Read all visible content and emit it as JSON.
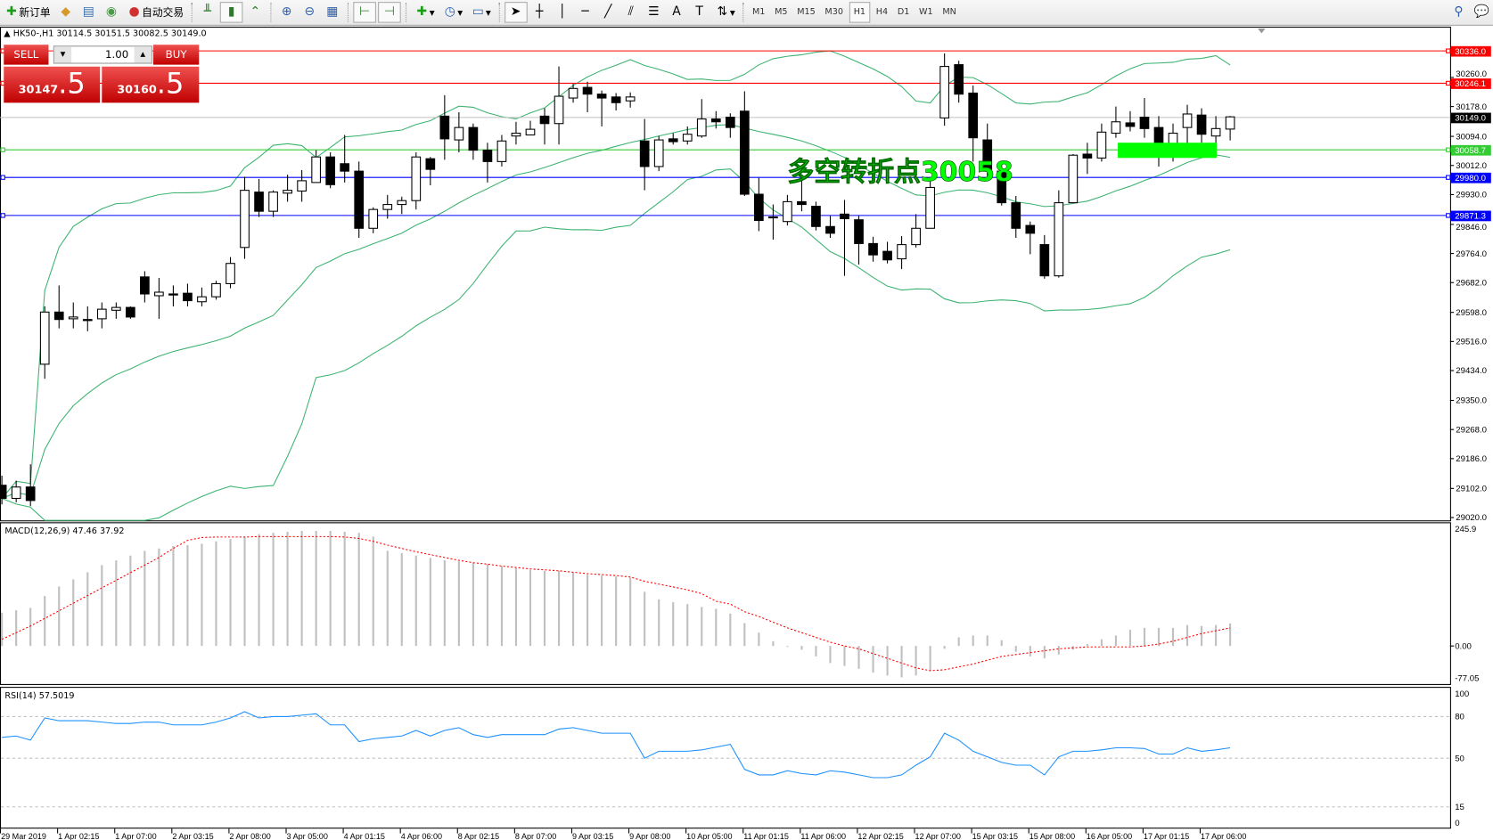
{
  "toolbar": {
    "new_order": "新订单",
    "auto_trading": "自动交易",
    "timeframes": [
      "M1",
      "M5",
      "M15",
      "M30",
      "H1",
      "H4",
      "D1",
      "W1",
      "MN"
    ],
    "active_timeframe": "H1",
    "icons": [
      "new-order-icon",
      "market-watch-icon",
      "navigator-icon",
      "signals-icon",
      "auto-trading-icon",
      "bar-chart-icon",
      "candlestick-icon",
      "line-chart-icon",
      "zoom-in-icon",
      "zoom-out-icon",
      "tile-windows-icon",
      "auto-scroll-icon",
      "chart-shift-icon",
      "indicators-icon",
      "periods-icon",
      "templates-icon",
      "cursor-icon",
      "crosshair-icon",
      "vertical-line-icon",
      "horizontal-line-icon",
      "trendline-icon",
      "equidistant-channel-icon",
      "fibonacci-icon",
      "text-icon",
      "text-label-icon",
      "arrows-icon",
      "search-icon",
      "chat-icon"
    ]
  },
  "chart": {
    "symbol_line": "HK50-,H1  30114.5 30151.5 30082.5 30149.0",
    "annotation": "多空转折点30058",
    "annotation_color": "#00ff00",
    "trade_panel": {
      "sell_label": "SELL",
      "buy_label": "BUY",
      "lot": "1.00",
      "sell_main": "30147",
      "sell_frac": ".5",
      "buy_main": "30160",
      "buy_frac": ".5"
    },
    "price_ticks": [
      "30260.0",
      "30178.0",
      "30094.0",
      "30012.0",
      "29930.0",
      "29846.0",
      "29764.0",
      "29682.0",
      "29598.0",
      "29516.0",
      "29434.0",
      "29350.0",
      "29268.0",
      "29186.0",
      "29102.0",
      "29020.0"
    ],
    "levels": [
      {
        "price": "30336.0",
        "color": "#ff0000"
      },
      {
        "price": "30246.1",
        "color": "#ff0000"
      },
      {
        "price": "30149.0",
        "color": "#000000",
        "line": "#c0c0c0"
      },
      {
        "price": "30058.7",
        "color": "#33cc33"
      },
      {
        "price": "29980.0",
        "color": "#0000ff"
      },
      {
        "price": "29871.3",
        "color": "#0000ff"
      }
    ],
    "time_labels": [
      "29 Mar 2019",
      "1 Apr 02:15",
      "1 Apr 07:00",
      "2 Apr 03:15",
      "2 Apr 08:00",
      "3 Apr 05:00",
      "4 Apr 01:15",
      "4 Apr 06:00",
      "8 Apr 02:15",
      "8 Apr 07:00",
      "9 Apr 03:15",
      "9 Apr 08:00",
      "10 Apr 05:00",
      "11 Apr 01:15",
      "11 Apr 06:00",
      "12 Apr 02:15",
      "12 Apr 07:00",
      "15 Apr 03:15",
      "15 Apr 08:00",
      "16 Apr 05:00",
      "17 Apr 01:15",
      "17 Apr 06:00"
    ]
  },
  "macd": {
    "label": "MACD(12,26,9) 47.46 37.92",
    "ticks": [
      "245.9",
      "0.00",
      "-77.05"
    ]
  },
  "rsi": {
    "label": "RSI(14) 57.5019",
    "ticks": [
      "100",
      "80",
      "50",
      "15",
      "0"
    ]
  },
  "chart_data": {
    "type": "candlestick",
    "ohlc": [
      [
        29111,
        29074,
        29138,
        29057
      ],
      [
        29074,
        29106,
        29124,
        29063
      ],
      [
        29106,
        29068,
        29170,
        29052
      ],
      [
        29452,
        29599,
        29615,
        29411
      ],
      [
        29599,
        29578,
        29674,
        29553
      ],
      [
        29580,
        29585,
        29626,
        29553
      ],
      [
        29578,
        29575,
        29615,
        29545
      ],
      [
        29580,
        29607,
        29626,
        29553
      ],
      [
        29604,
        29612,
        29626,
        29580
      ],
      [
        29612,
        29585,
        29615,
        29580
      ],
      [
        29698,
        29650,
        29714,
        29626
      ],
      [
        29645,
        29655,
        29695,
        29580
      ],
      [
        29650,
        29647,
        29674,
        29615
      ],
      [
        29652,
        29631,
        29679,
        29615
      ],
      [
        29628,
        29642,
        29668,
        29615
      ],
      [
        29642,
        29679,
        29687,
        29634
      ],
      [
        29679,
        29736,
        29754,
        29666
      ],
      [
        29781,
        29942,
        29980,
        29749
      ],
      [
        29937,
        29883,
        29974,
        29867
      ],
      [
        29883,
        29937,
        29942,
        29867
      ],
      [
        29934,
        29942,
        29986,
        29910
      ],
      [
        29940,
        29969,
        29999,
        29910
      ],
      [
        29964,
        30036,
        30055,
        29964
      ],
      [
        30036,
        29958,
        30049,
        29948
      ],
      [
        30017,
        29996,
        30098,
        29964
      ],
      [
        29996,
        29835,
        30023,
        29808
      ],
      [
        29835,
        29888,
        29894,
        29821
      ],
      [
        29888,
        29902,
        29929,
        29862
      ],
      [
        29902,
        29913,
        29924,
        29875
      ],
      [
        29913,
        30036,
        30049,
        29888
      ],
      [
        30031,
        30001,
        30036,
        29956
      ],
      [
        30151,
        30087,
        30210,
        30028
      ],
      [
        30084,
        30119,
        30162,
        30049
      ],
      [
        30119,
        30055,
        30130,
        30028
      ],
      [
        30055,
        30023,
        30076,
        29964
      ],
      [
        30023,
        30081,
        30098,
        30009
      ],
      [
        30095,
        30103,
        30135,
        30071
      ],
      [
        30098,
        30114,
        30138,
        30098
      ],
      [
        30151,
        30130,
        30173,
        30071
      ],
      [
        30130,
        30207,
        30291,
        30071
      ],
      [
        30202,
        30229,
        30242,
        30189
      ],
      [
        30232,
        30213,
        30248,
        30162
      ],
      [
        30213,
        30202,
        30223,
        30122
      ],
      [
        30205,
        30189,
        30216,
        30167
      ],
      [
        30194,
        30205,
        30218,
        30175
      ],
      [
        30081,
        30009,
        30143,
        29942
      ],
      [
        30009,
        30084,
        30095,
        29996
      ],
      [
        30087,
        30079,
        30103,
        30071
      ],
      [
        30081,
        30100,
        30122,
        30071
      ],
      [
        30095,
        30143,
        30199,
        30090
      ],
      [
        30143,
        30135,
        30165,
        30116
      ],
      [
        30148,
        30119,
        30159,
        30090
      ],
      [
        30165,
        29931,
        30221,
        29926
      ],
      [
        29931,
        29857,
        29977,
        29827
      ],
      [
        29867,
        29865,
        29902,
        29803
      ],
      [
        29854,
        29910,
        29929,
        29843
      ],
      [
        29910,
        29902,
        29969,
        29883
      ],
      [
        29897,
        29840,
        29910,
        29829
      ],
      [
        29840,
        29821,
        29870,
        29808
      ],
      [
        29875,
        29862,
        29915,
        29701
      ],
      [
        29859,
        29792,
        29870,
        29733
      ],
      [
        29792,
        29760,
        29811,
        29741
      ],
      [
        29770,
        29746,
        29797,
        29736
      ],
      [
        29749,
        29789,
        29813,
        29720
      ],
      [
        29789,
        29835,
        29875,
        29781
      ],
      [
        29835,
        29950,
        29969,
        29835
      ],
      [
        30146,
        30291,
        30328,
        30124
      ],
      [
        30296,
        30213,
        30307,
        30189
      ],
      [
        30216,
        30090,
        30237,
        30023
      ],
      [
        30084,
        29996,
        30130,
        29969
      ],
      [
        29996,
        29907,
        30017,
        29899
      ],
      [
        29907,
        29835,
        29926,
        29808
      ],
      [
        29843,
        29821,
        29854,
        29762
      ],
      [
        29789,
        29701,
        29816,
        29693
      ],
      [
        29701,
        29907,
        29942,
        29696
      ],
      [
        29907,
        30041,
        30044,
        29907
      ],
      [
        30044,
        30033,
        30076,
        29988
      ],
      [
        30033,
        30106,
        30130,
        30023
      ],
      [
        30103,
        30135,
        30178,
        30090
      ],
      [
        30132,
        30122,
        30165,
        30108
      ],
      [
        30148,
        30116,
        30202,
        30090
      ],
      [
        30119,
        30049,
        30151,
        30009
      ],
      [
        30049,
        30103,
        30130,
        30023
      ],
      [
        30119,
        30157,
        30183,
        30049
      ],
      [
        30154,
        30100,
        30173,
        30076
      ],
      [
        30095,
        30116,
        30151,
        30076
      ],
      [
        30114.5,
        30149.0,
        30151.5,
        30082.5
      ]
    ],
    "ylim": [
      29012,
      30403
    ],
    "indicator_bands": "Bollinger",
    "macd_hist": [
      70,
      75,
      80,
      105,
      125,
      140,
      155,
      170,
      180,
      190,
      200,
      205,
      210,
      212,
      215,
      220,
      225,
      230,
      235,
      238,
      240,
      242,
      242,
      242,
      240,
      238,
      230,
      200,
      195,
      190,
      185,
      180,
      178,
      175,
      172,
      168,
      164,
      160,
      158,
      158,
      155,
      150,
      148,
      146,
      144,
      114,
      98,
      92,
      88,
      82,
      78,
      68,
      48,
      28,
      10,
      -2,
      -8,
      -22,
      -36,
      -42,
      -48,
      -56,
      -62,
      -66,
      -62,
      -52,
      -6,
      18,
      22,
      22,
      12,
      -12,
      -22,
      -26,
      -18,
      -8,
      4,
      14,
      22,
      34,
      38,
      38,
      38,
      44,
      42,
      44,
      47.46
    ],
    "macd_signal": [
      14,
      28,
      42,
      58,
      74,
      90,
      106,
      122,
      138,
      154,
      170,
      186,
      205,
      222,
      228,
      229,
      229,
      229,
      230,
      230,
      230,
      230,
      230,
      230,
      229,
      226,
      220,
      212,
      205,
      198,
      192,
      186,
      180,
      175,
      172,
      168,
      165,
      162,
      160,
      158,
      155,
      152,
      150,
      148,
      145,
      136,
      130,
      124,
      118,
      110,
      94,
      88,
      72,
      62,
      50,
      38,
      28,
      18,
      8,
      0,
      -6,
      -16,
      -26,
      -36,
      -46,
      -52,
      -50,
      -44,
      -38,
      -30,
      -22,
      -18,
      -14,
      -10,
      -6,
      -4,
      -2,
      -2,
      -2,
      -2,
      0,
      4,
      10,
      18,
      26,
      32,
      37.92
    ],
    "macd_ylim": [
      -77.05,
      245.9
    ],
    "rsi": [
      65,
      66,
      63,
      79,
      77,
      77,
      77,
      76,
      75,
      75,
      76,
      76,
      74,
      74,
      74,
      76,
      79,
      83.5,
      79,
      80,
      80,
      81,
      82,
      74,
      74,
      62,
      64,
      65,
      66,
      70,
      66,
      70,
      72,
      67,
      65,
      67,
      67,
      67,
      67,
      71,
      72,
      70,
      68,
      68,
      68,
      50,
      55,
      55,
      55,
      56,
      58,
      60,
      42,
      38,
      38,
      41,
      39,
      38,
      41,
      40,
      38,
      36,
      36,
      38,
      45,
      51,
      68,
      63,
      55,
      51,
      47,
      45,
      45,
      38,
      51,
      55,
      55,
      56,
      57.5,
      57.5,
      57,
      53,
      53,
      57.5,
      55,
      56,
      57.5
    ],
    "rsi_levels": [
      80,
      50,
      15
    ],
    "rsi_ylim": [
      0,
      100
    ]
  }
}
